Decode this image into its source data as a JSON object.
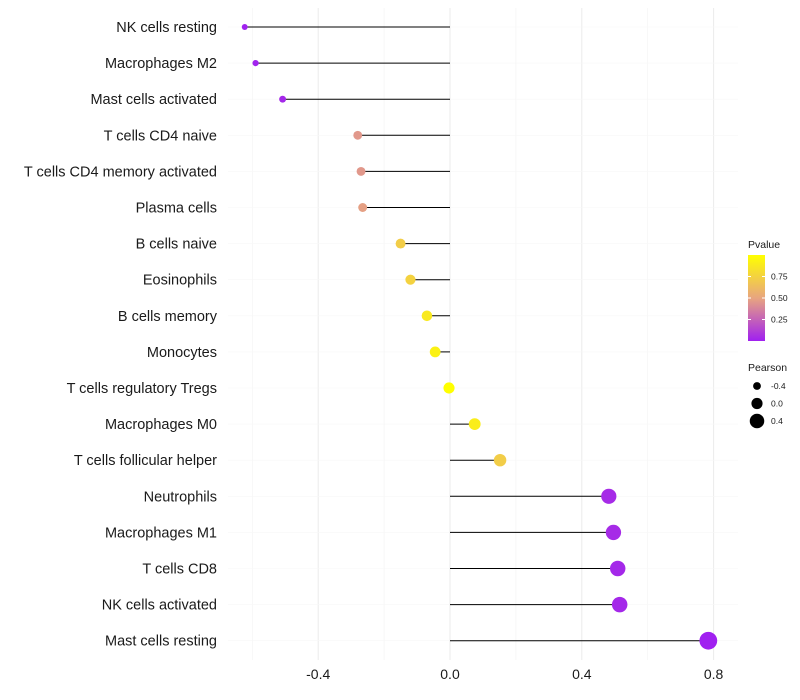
{
  "chart_data": {
    "type": "lollipop",
    "title": "",
    "xlabel": "",
    "ylabel": "",
    "xlim": [
      -0.66,
      0.83
    ],
    "x_ticks": [
      -0.4,
      0.0,
      0.4,
      0.8
    ],
    "x_tick_labels": [
      "-0.4",
      "0.0",
      "0.4",
      "0.8"
    ],
    "grid": true,
    "categories": [
      "NK cells resting",
      "Macrophages M2",
      "Mast cells activated",
      "T cells CD4 naive",
      "T cells CD4 memory activated",
      "Plasma cells",
      "B cells naive",
      "Eosinophils",
      "B cells memory",
      "Monocytes",
      "T cells regulatory  Tregs ",
      "Macrophages M0",
      "T cells follicular helper",
      "Neutrophils",
      "Macrophages M1",
      "T cells CD8",
      "NK cells activated",
      "Mast cells resting"
    ],
    "pearson": [
      -0.623,
      -0.59,
      -0.508,
      -0.28,
      -0.27,
      -0.265,
      -0.15,
      -0.12,
      -0.07,
      -0.045,
      -0.003,
      0.075,
      0.152,
      0.482,
      0.496,
      0.509,
      0.515,
      0.784
    ],
    "pvalue": [
      0.006,
      0.01,
      0.03,
      0.45,
      0.45,
      0.48,
      0.72,
      0.75,
      0.88,
      0.92,
      1.0,
      0.9,
      0.72,
      0.04,
      0.04,
      0.03,
      0.03,
      0.001
    ],
    "legend": {
      "color": {
        "title": "Pvalue",
        "ticks": [
          0.25,
          0.5,
          0.75
        ],
        "tick_labels": [
          "0.25",
          "0.50",
          "0.75"
        ],
        "range": [
          0.0,
          1.0
        ],
        "low_color": "#a020f0",
        "mid_color": "#e8a580",
        "high_color": "#ffff00"
      },
      "size": {
        "title": "Pearson",
        "values": [
          -0.4,
          0.0,
          0.4
        ],
        "labels": [
          "-0.4",
          "0.0",
          "0.4"
        ]
      },
      "placement": "right"
    }
  }
}
